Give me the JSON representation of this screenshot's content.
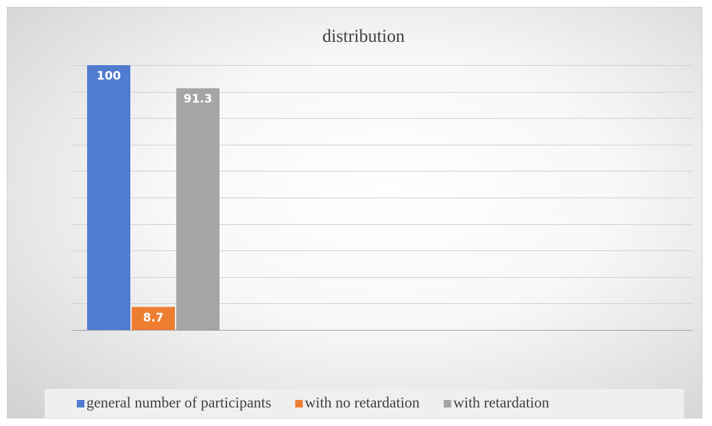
{
  "chart_data": {
    "type": "bar",
    "title": "distribution",
    "categories": [
      null
    ],
    "series": [
      {
        "name": "general number of participants",
        "color": "#4f7bd0",
        "values": [
          100
        ]
      },
      {
        "name": "with no retardation",
        "color": "#ed7d31",
        "values": [
          8.7
        ]
      },
      {
        "name": "with retardation",
        "color": "#a5a5a5",
        "values": [
          91.3
        ]
      }
    ],
    "ylim": [
      0,
      100
    ],
    "yticks": [
      0,
      10,
      20,
      30,
      40,
      50,
      60,
      70,
      80,
      90,
      100
    ],
    "grid": true,
    "legend": "bottom"
  }
}
